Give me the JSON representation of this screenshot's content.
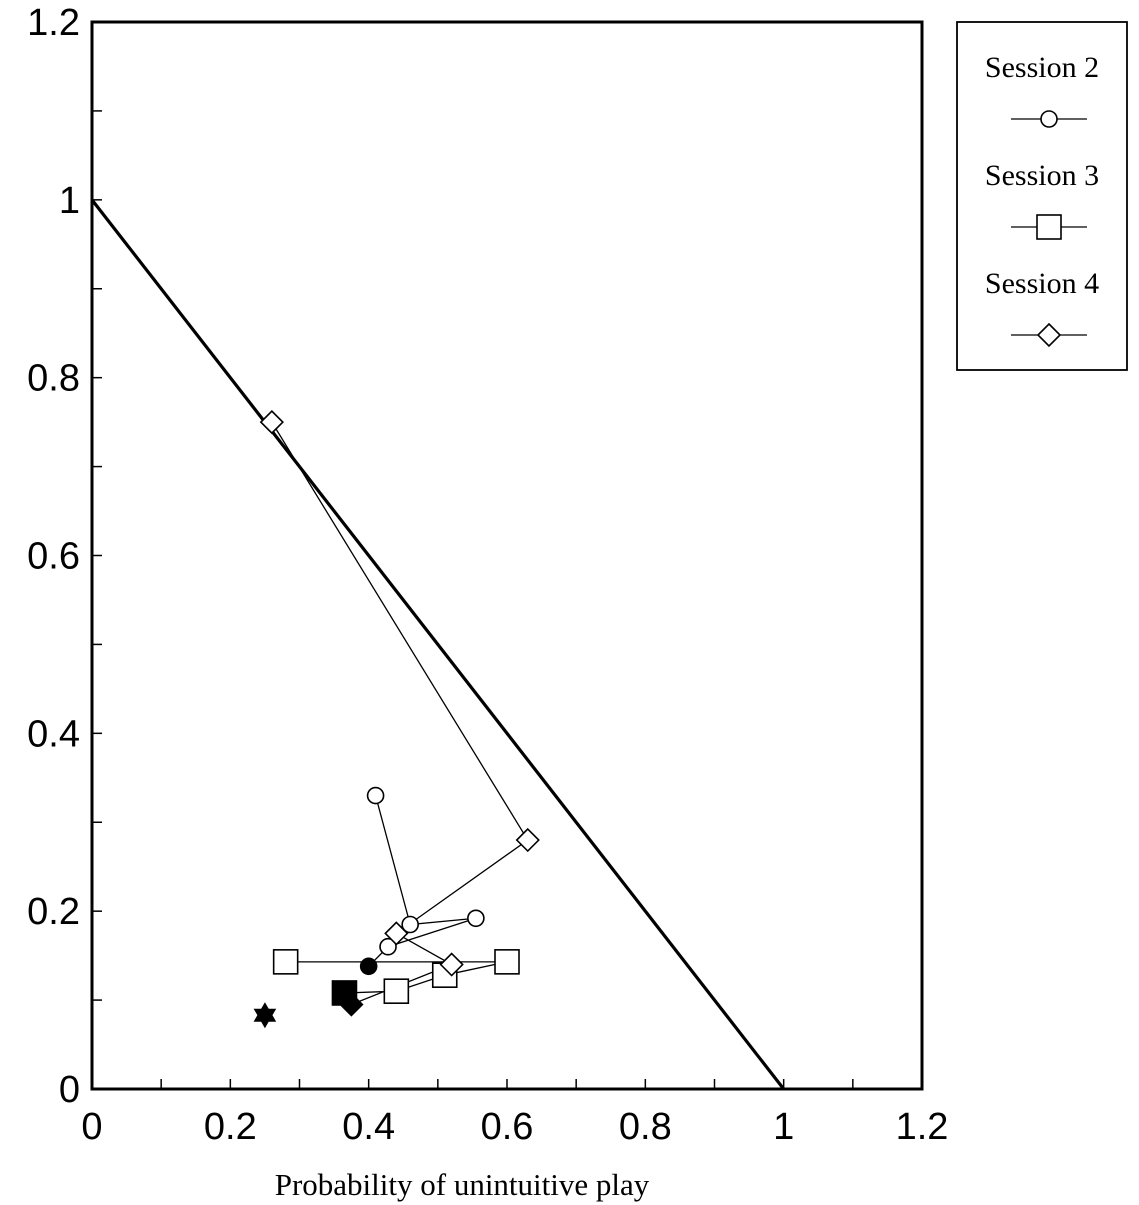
{
  "chart_data": {
    "type": "scatter",
    "title": "",
    "xlabel": "Probability of unintuitive play",
    "ylabel": "",
    "xlim": [
      0,
      1.2
    ],
    "ylim": [
      0,
      1.2
    ],
    "x_ticks": [
      "0",
      "0.2",
      "0.4",
      "0.6",
      "0.8",
      "1",
      "1.2"
    ],
    "y_ticks": [
      "0",
      "0.2",
      "0.4",
      "0.6",
      "0.8",
      "1",
      "1.2"
    ],
    "grid": false,
    "legend_position": "outside-top-right",
    "reference_line": {
      "x": [
        0,
        1
      ],
      "y": [
        1,
        0
      ]
    },
    "series": [
      {
        "name": "Session 2",
        "marker": "circle",
        "points": [
          [
            0.41,
            0.33
          ],
          [
            0.46,
            0.185
          ],
          [
            0.555,
            0.192
          ],
          [
            0.428,
            0.16
          ],
          [
            0.4,
            0.138
          ]
        ]
      },
      {
        "name": "Session 3",
        "marker": "square",
        "points": [
          [
            0.28,
            0.143
          ],
          [
            0.6,
            0.143
          ],
          [
            0.51,
            0.128
          ],
          [
            0.44,
            0.11
          ],
          [
            0.365,
            0.108
          ]
        ]
      },
      {
        "name": "Session 4",
        "marker": "diamond",
        "points": [
          [
            0.26,
            0.75
          ],
          [
            0.63,
            0.28
          ],
          [
            0.44,
            0.175
          ],
          [
            0.52,
            0.14
          ],
          [
            0.375,
            0.095
          ]
        ]
      }
    ],
    "extra_markers": [
      {
        "marker": "star",
        "filled": true,
        "x": 0.25,
        "y": 0.083
      }
    ]
  }
}
